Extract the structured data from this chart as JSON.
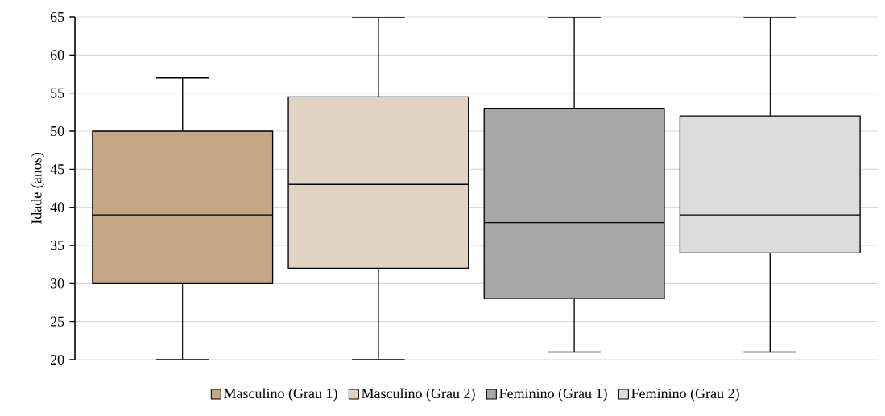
{
  "chart_data": {
    "type": "box",
    "ylabel": "Idade (anos)",
    "categories": [
      null
    ],
    "series": [
      {
        "name": "Masculino (Grau 1)",
        "color": "#c4a684",
        "boxes": [
          {
            "low": 20,
            "q1": 30,
            "median": 39,
            "q3": 50,
            "high": 57
          }
        ]
      },
      {
        "name": "Masculino (Grau 2)",
        "color": "#e0d3c1",
        "boxes": [
          {
            "low": 20,
            "q1": 32,
            "median": 43,
            "q3": 54.5,
            "high": 65
          }
        ]
      },
      {
        "name": "Feminino (Grau 1)",
        "color": "#a6a6a6",
        "boxes": [
          {
            "low": 21,
            "q1": 28,
            "median": 38,
            "q3": 53,
            "high": 65
          }
        ]
      },
      {
        "name": "Feminino (Grau 2)",
        "color": "#dcdcdc",
        "boxes": [
          {
            "low": 21,
            "q1": 34,
            "median": 39,
            "q3": 52,
            "high": 65
          }
        ]
      }
    ],
    "ylim": [
      20,
      65
    ],
    "yticks": [
      20,
      25,
      30,
      35,
      40,
      45,
      50,
      55,
      60,
      65
    ],
    "grid": "y",
    "legend": "bottom"
  }
}
